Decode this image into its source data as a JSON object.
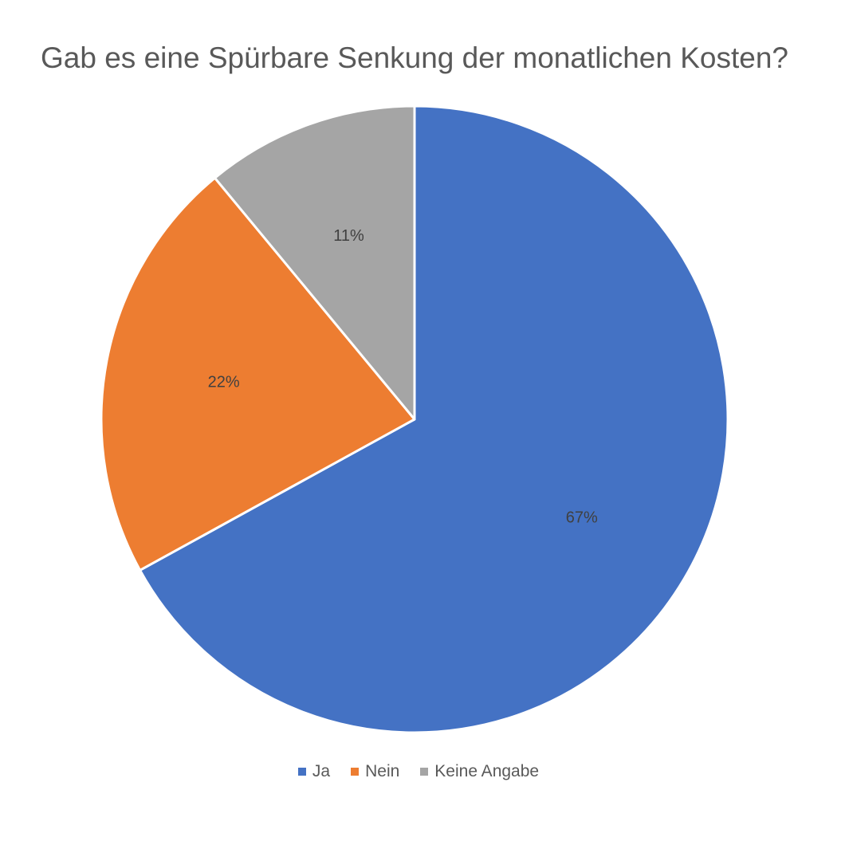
{
  "chart_data": {
    "type": "pie",
    "title": "Gab es eine Spürbare Senkung der monatlichen Kosten?",
    "categories": [
      "Ja",
      "Nein",
      "Keine Angabe"
    ],
    "values": [
      67,
      22,
      11
    ],
    "data_labels": [
      "67%",
      "22%",
      "11%"
    ],
    "colors": [
      "#4472C4",
      "#ED7D31",
      "#A5A5A5"
    ],
    "legend_position": "bottom",
    "start_angle": "12 o'clock",
    "direction": "clockwise"
  }
}
